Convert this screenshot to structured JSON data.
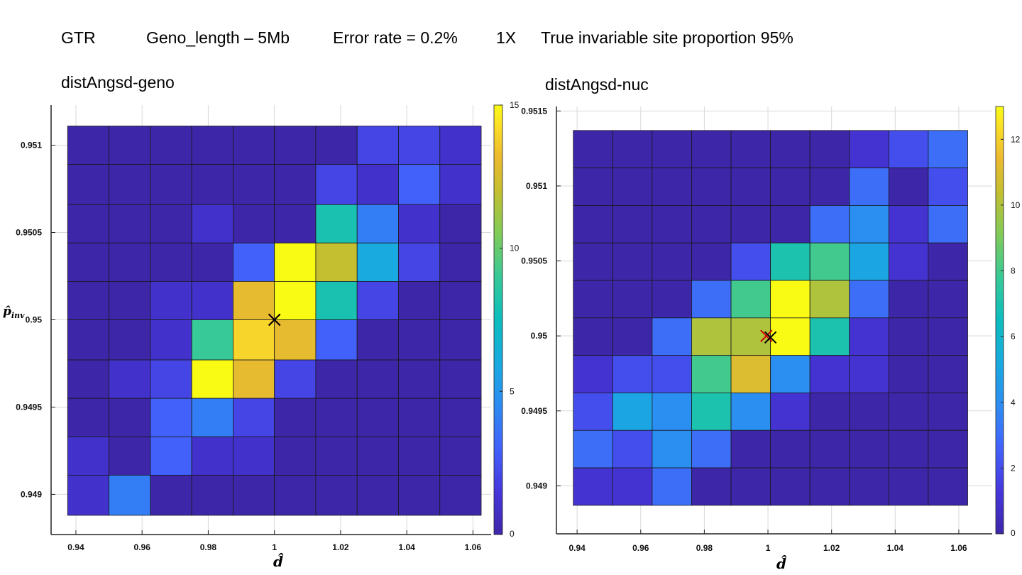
{
  "header": {
    "model": "GTR",
    "geno_length": "Geno_length – 5Mb",
    "error_rate": "Error rate = 0.2%",
    "coverage": "1X",
    "true_pinv": "True invariable site proportion 95%"
  },
  "chart_data": [
    {
      "type": "heatmap",
      "title": "distAngsd-geno",
      "xlabel": "d̂",
      "ylabel": "p̂inv",
      "x_ticks": [
        "0.94",
        "0.96",
        "0.98",
        "1",
        "1.02",
        "1.04",
        "1.06"
      ],
      "x_tick_values": [
        0.94,
        0.96,
        0.98,
        1.0,
        1.02,
        1.04,
        1.06
      ],
      "xlim": [
        0.9325,
        1.0655
      ],
      "y_ticks": [
        "0.951",
        "0.9505",
        "0.95",
        "0.9495",
        "0.949"
      ],
      "y_tick_values": [
        0.951,
        0.9505,
        0.95,
        0.9495,
        0.949
      ],
      "ylim": [
        0.94877,
        0.95123
      ],
      "x_bin_edges": [
        0.9375,
        0.95,
        0.9625,
        0.975,
        0.9875,
        1.0,
        1.0125,
        1.025,
        1.0375,
        1.05,
        1.0625
      ],
      "y_bin_edges": [
        0.95111,
        0.95089,
        0.95066,
        0.95044,
        0.95022,
        0.95,
        0.94977,
        0.94955,
        0.94933,
        0.94911,
        0.94888
      ],
      "grid": true,
      "colorbar": {
        "min": 0,
        "max": 15,
        "ticks": [
          "0",
          "5",
          "10",
          "15"
        ],
        "tick_values": [
          0,
          5,
          10,
          15
        ]
      },
      "values": [
        [
          0,
          0,
          0,
          0,
          0,
          0,
          0,
          2,
          2,
          1
        ],
        [
          0,
          0,
          0,
          0,
          0,
          0,
          2,
          1,
          3,
          1
        ],
        [
          0,
          0,
          0,
          1,
          0,
          0,
          8,
          4,
          1,
          0
        ],
        [
          0,
          0,
          0,
          0,
          3,
          15,
          12,
          6,
          2,
          0
        ],
        [
          0,
          0,
          1,
          1,
          13,
          15,
          8,
          2,
          0,
          0
        ],
        [
          0,
          0,
          1,
          9,
          14,
          13,
          3,
          0,
          0,
          0
        ],
        [
          0,
          1,
          2,
          15,
          13,
          2,
          0,
          0,
          0,
          0
        ],
        [
          0,
          0,
          3,
          4,
          2,
          0,
          0,
          0,
          0,
          0
        ],
        [
          1,
          0,
          3,
          1,
          1,
          0,
          0,
          0,
          0,
          0
        ],
        [
          1,
          4,
          0,
          0,
          0,
          0,
          0,
          0,
          0,
          0
        ]
      ],
      "markers": [
        {
          "x": 1.0,
          "y": 0.95,
          "color": "#cc0000"
        },
        {
          "x": 1.0,
          "y": 0.95,
          "color": "#000000"
        }
      ]
    },
    {
      "type": "heatmap",
      "title": "distAngsd-nuc",
      "xlabel": "d̂",
      "ylabel": "",
      "x_ticks": [
        "0.94",
        "0.96",
        "0.98",
        "1",
        "1.02",
        "1.04",
        "1.06"
      ],
      "x_tick_values": [
        0.94,
        0.96,
        0.98,
        1.0,
        1.02,
        1.04,
        1.06
      ],
      "xlim": [
        0.9335,
        1.0705
      ],
      "y_ticks": [
        "0.9515",
        "0.951",
        "0.9505",
        "0.95",
        "0.9495",
        "0.949"
      ],
      "y_tick_values": [
        0.9515,
        0.951,
        0.9505,
        0.95,
        0.9495,
        0.949
      ],
      "ylim": [
        0.94868,
        0.95153
      ],
      "x_bin_edges": [
        0.9388,
        0.9512,
        0.9636,
        0.976,
        0.9884,
        1.0008,
        1.0132,
        1.0256,
        1.038,
        1.0504,
        1.0628
      ],
      "y_bin_edges": [
        0.95137,
        0.95112,
        0.95087,
        0.95062,
        0.95037,
        0.95012,
        0.94987,
        0.94962,
        0.94937,
        0.94912,
        0.94887
      ],
      "grid": true,
      "colorbar": {
        "min": 0,
        "max": 13,
        "ticks": [
          "0",
          "2",
          "4",
          "6",
          "8",
          "10",
          "12"
        ],
        "tick_values": [
          0,
          2,
          4,
          6,
          8,
          10,
          12
        ]
      },
      "values": [
        [
          0,
          0,
          0,
          0,
          0,
          0,
          0,
          1,
          2,
          3
        ],
        [
          0,
          0,
          0,
          0,
          0,
          0,
          0,
          3,
          0,
          2
        ],
        [
          0,
          0,
          0,
          0,
          0,
          0,
          3,
          4,
          1,
          3
        ],
        [
          0,
          0,
          0,
          0,
          2,
          7,
          8,
          5,
          1,
          0
        ],
        [
          0,
          0,
          0,
          3,
          8,
          13,
          10,
          3,
          0,
          0
        ],
        [
          0,
          0,
          3,
          10,
          10,
          13,
          7,
          1,
          0,
          0
        ],
        [
          1,
          2,
          2,
          8,
          11,
          4,
          1,
          1,
          0,
          0
        ],
        [
          2,
          5,
          4,
          7,
          4,
          1,
          0,
          0,
          0,
          0
        ],
        [
          3,
          2,
          4,
          3,
          0,
          0,
          0,
          0,
          0,
          0
        ],
        [
          1,
          1,
          3,
          0,
          0,
          0,
          0,
          0,
          0,
          0
        ]
      ],
      "markers": [
        {
          "x": 0.9995,
          "y": 0.95,
          "color": "#cc0000"
        },
        {
          "x": 1.0008,
          "y": 0.94999,
          "color": "#000000"
        }
      ]
    }
  ]
}
